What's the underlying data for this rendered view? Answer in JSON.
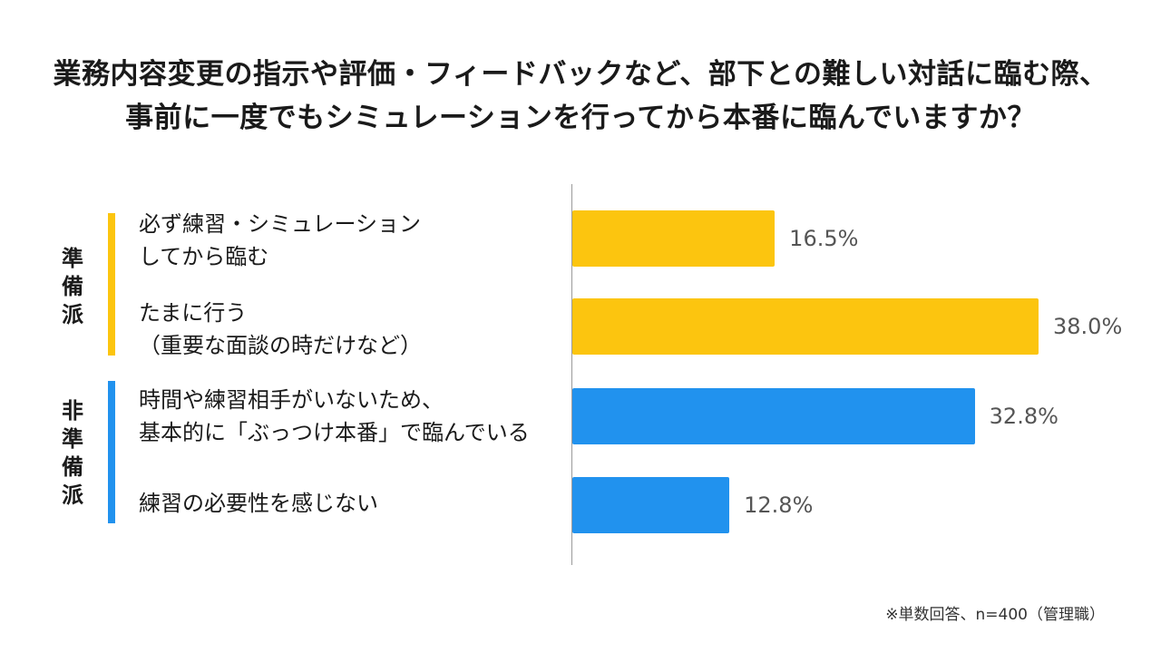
{
  "chart_data": {
    "type": "bar",
    "orientation": "horizontal",
    "title_lines": [
      "業務内容変更の指示や評価・フィードバックなど、部下との難しい対話に臨む際、",
      "事前に一度でもシミュレーションを行ってから本番に臨んでいますか？"
    ],
    "groups": [
      {
        "label": "準備派",
        "color": "#FCC50F"
      },
      {
        "label": "非準備派",
        "color": "#2192EE"
      }
    ],
    "categories": [
      "必ず練習・シミュレーション\nしてから臨む",
      "たまに行う\n（重要な面談の時だけなど）",
      "時間や練習相手がいないため、\n基本的に「ぶっつけ本番」で臨んでいる",
      "練習の必要性を感じない"
    ],
    "values": [
      16.5,
      38.0,
      32.8,
      12.8
    ],
    "value_labels": [
      "16.5%",
      "38.0%",
      "32.8%",
      "12.8%"
    ],
    "category_group": [
      0,
      0,
      1,
      1
    ],
    "unit": "%",
    "xlim": [
      0,
      45
    ],
    "footnote": "※単数回答、n=400（管理職）"
  }
}
